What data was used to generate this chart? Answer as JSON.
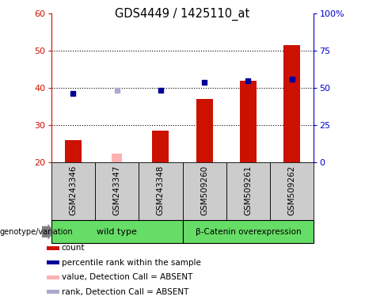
{
  "title": "GDS4449 / 1425110_at",
  "samples": [
    "GSM243346",
    "GSM243347",
    "GSM243348",
    "GSM509260",
    "GSM509261",
    "GSM509262"
  ],
  "red_bars": [
    26.0,
    null,
    28.5,
    37.0,
    42.0,
    51.5
  ],
  "pink_bars": [
    null,
    22.5,
    null,
    null,
    null,
    null
  ],
  "blue_dots": [
    38.5,
    null,
    39.5,
    41.5,
    42.0,
    42.5
  ],
  "lavender_dots": [
    null,
    39.5,
    null,
    null,
    null,
    null
  ],
  "ylim_left": [
    20,
    60
  ],
  "ylim_right": [
    0,
    100
  ],
  "yticks_left": [
    20,
    30,
    40,
    50,
    60
  ],
  "yticks_right": [
    0,
    25,
    50,
    75,
    100
  ],
  "yticklabels_right": [
    "0",
    "25",
    "50",
    "75",
    "100%"
  ],
  "bar_width": 0.38,
  "pink_bar_width": 0.22,
  "red_color": "#cc1100",
  "pink_color": "#ffb0b0",
  "blue_color": "#000099",
  "lavender_color": "#aaaacc",
  "left_tick_color": "#cc1100",
  "right_tick_color": "#0000cc",
  "group1_label": "wild type",
  "group2_label": "β-Catenin overexpression",
  "group_color": "#66dd66",
  "sample_box_color": "#cccccc",
  "legend_items": [
    {
      "color": "#cc1100",
      "label": "count"
    },
    {
      "color": "#000099",
      "label": "percentile rank within the sample"
    },
    {
      "color": "#ffb0b0",
      "label": "value, Detection Call = ABSENT"
    },
    {
      "color": "#aaaacc",
      "label": "rank, Detection Call = ABSENT"
    }
  ]
}
